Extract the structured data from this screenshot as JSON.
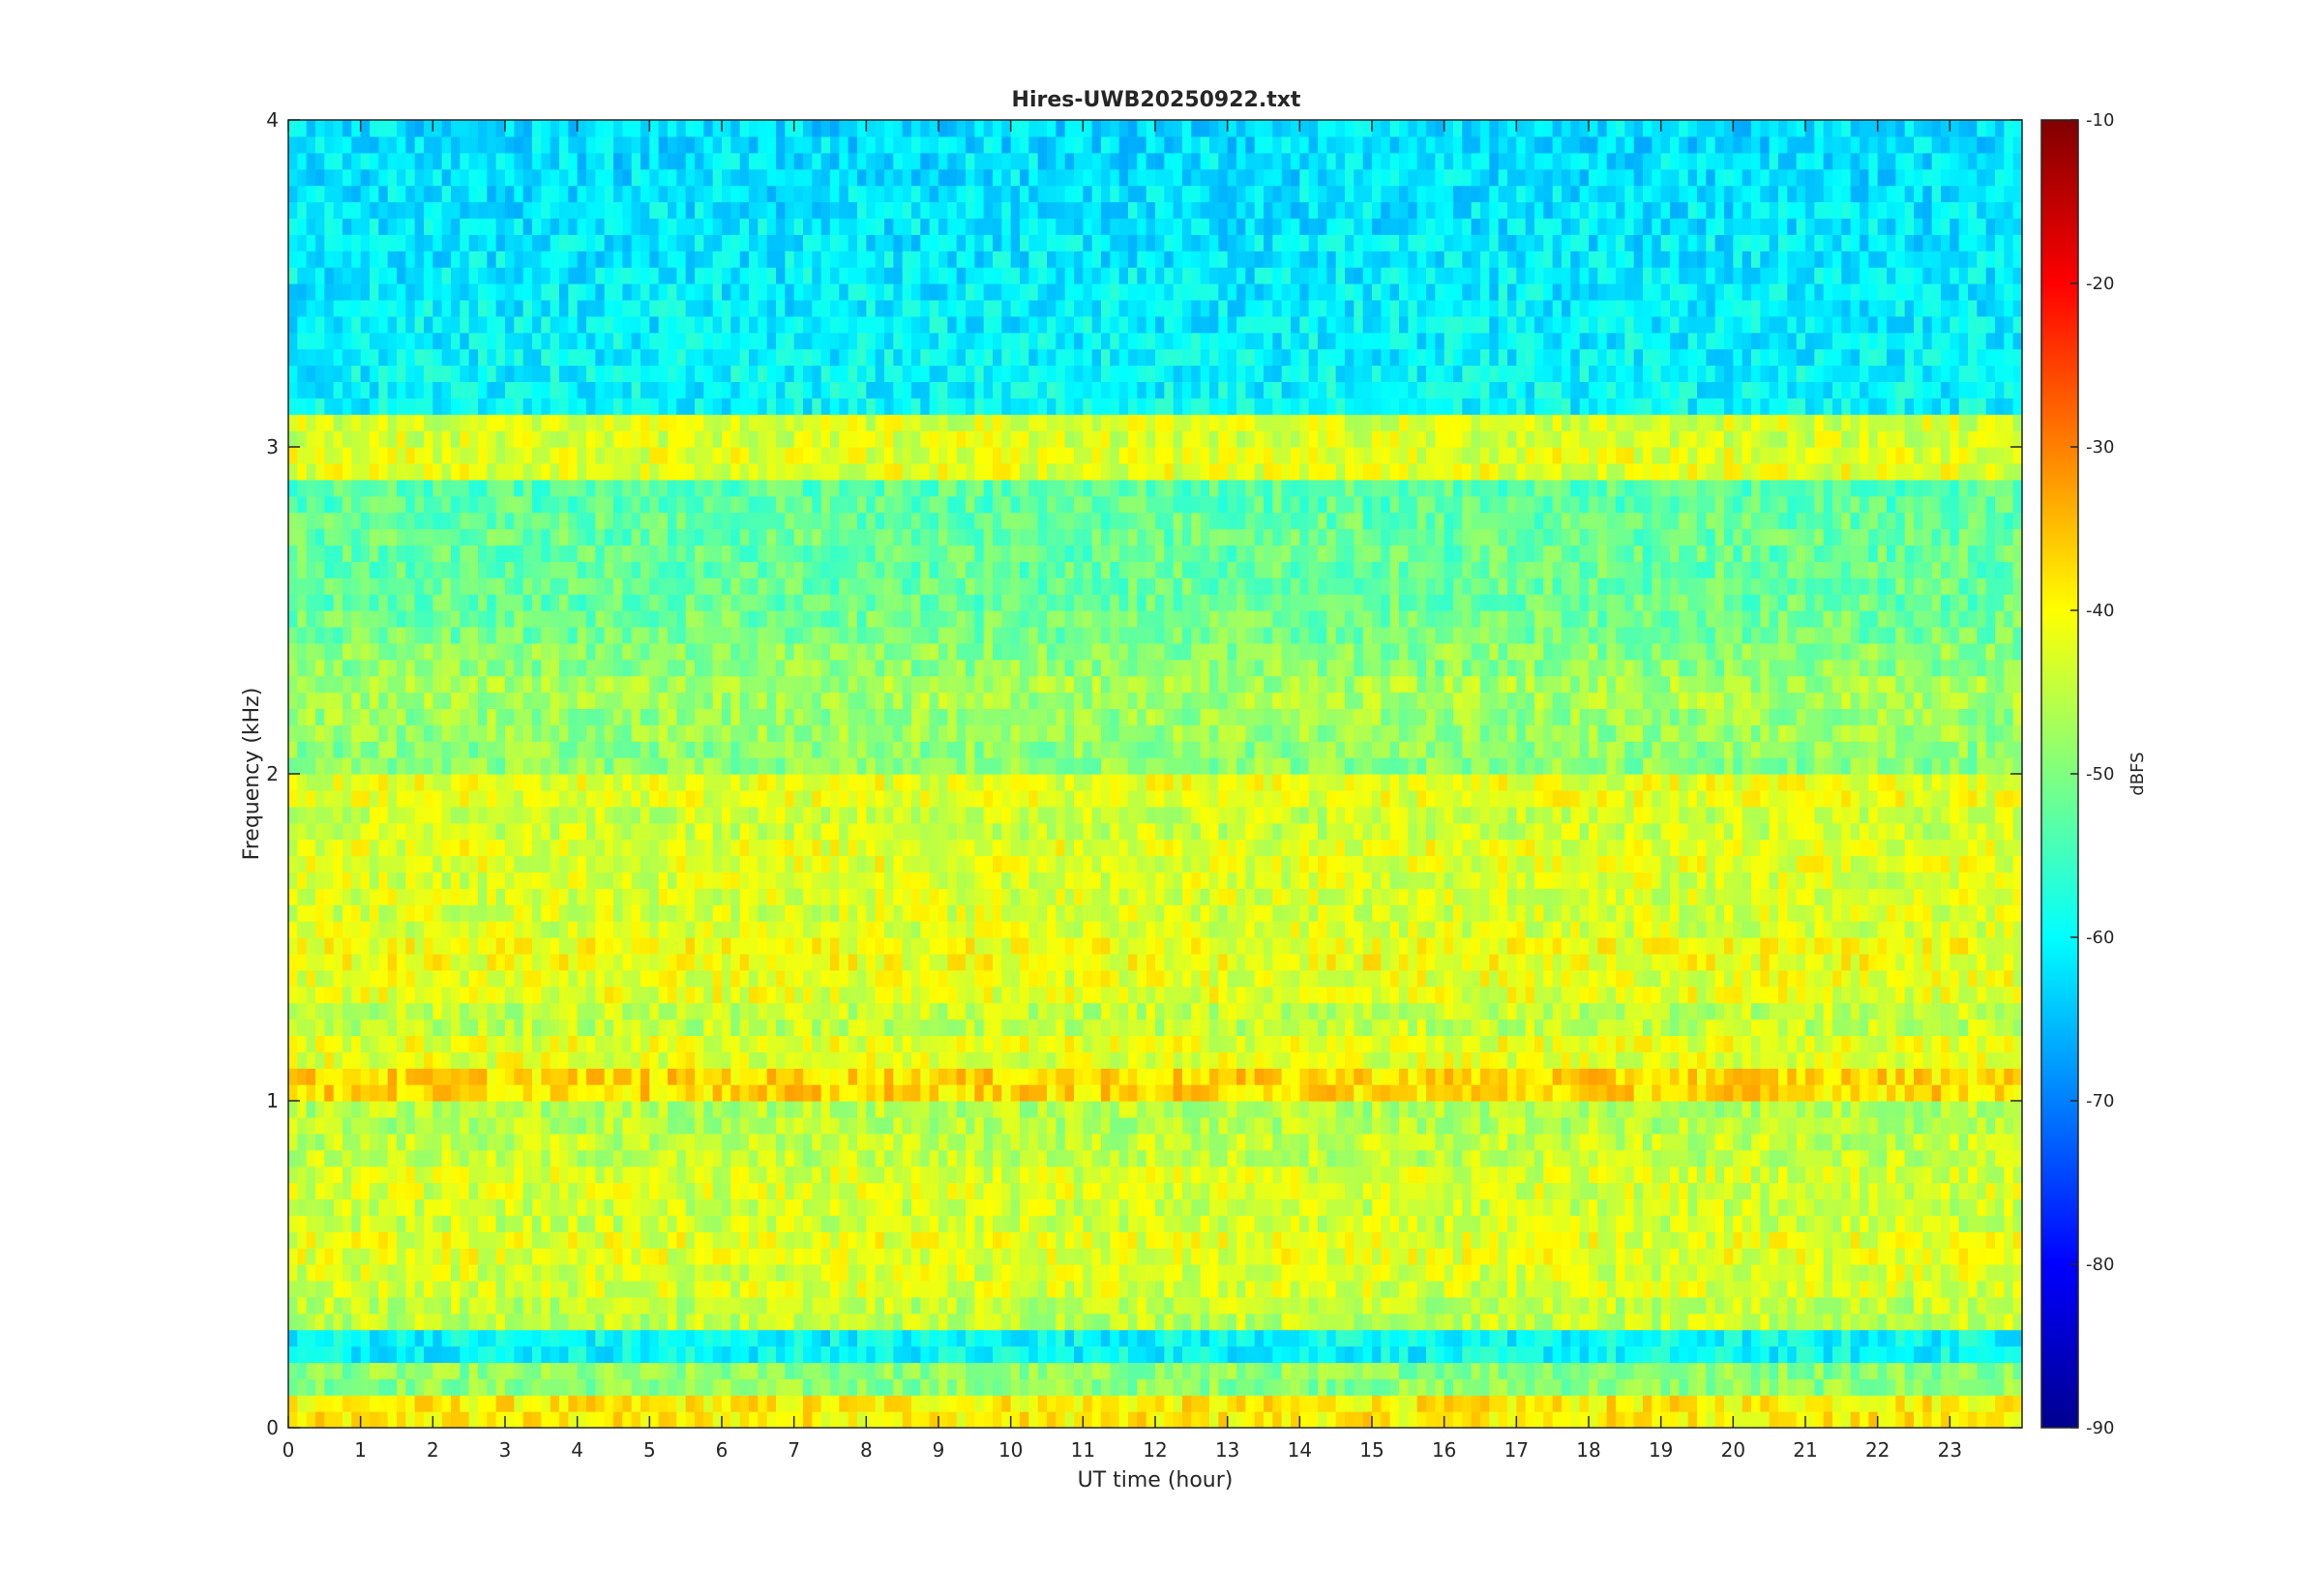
{
  "chart_data": {
    "type": "heatmap",
    "title": "Hires-UWB20250922.txt",
    "xlabel": "UT time (hour)",
    "ylabel": "Frequency (kHz)",
    "xlim": [
      0,
      24
    ],
    "ylim": [
      0,
      4
    ],
    "x_ticks": [
      "0",
      "1",
      "2",
      "3",
      "4",
      "5",
      "6",
      "7",
      "8",
      "9",
      "10",
      "11",
      "12",
      "13",
      "14",
      "15",
      "16",
      "17",
      "18",
      "19",
      "20",
      "21",
      "22",
      "23"
    ],
    "y_ticks": [
      "0",
      "1",
      "2",
      "3",
      "4"
    ],
    "colorbar": {
      "label": "dBFS",
      "clim": [
        -90,
        -10
      ],
      "ticks": [
        "-90",
        "-80",
        "-70",
        "-60",
        "-50",
        "-40",
        "-30",
        "-20",
        "-10"
      ],
      "colormap": "jet"
    },
    "grid": false,
    "bands_khz_dbfs": [
      {
        "f": 0.05,
        "level": -42
      },
      {
        "f": 0.15,
        "level": -52
      },
      {
        "f": 0.35,
        "level": -48
      },
      {
        "f": 0.45,
        "level": -46
      },
      {
        "f": 0.55,
        "level": -45
      },
      {
        "f": 0.65,
        "level": -47
      },
      {
        "f": 0.75,
        "level": -46
      },
      {
        "f": 0.85,
        "level": -48
      },
      {
        "f": 0.95,
        "level": -49
      },
      {
        "f": 1.05,
        "level": -40
      },
      {
        "f": 1.15,
        "level": -45
      },
      {
        "f": 1.25,
        "level": -48
      },
      {
        "f": 1.35,
        "level": -45
      },
      {
        "f": 1.45,
        "level": -44
      },
      {
        "f": 1.55,
        "level": -46
      },
      {
        "f": 1.65,
        "level": -46
      },
      {
        "f": 1.75,
        "level": -45
      },
      {
        "f": 1.85,
        "level": -47
      },
      {
        "f": 1.95,
        "level": -45
      },
      {
        "f": 2.05,
        "level": -52
      },
      {
        "f": 2.15,
        "level": -51
      },
      {
        "f": 2.25,
        "level": -50
      },
      {
        "f": 2.35,
        "level": -52
      },
      {
        "f": 2.45,
        "level": -54
      },
      {
        "f": 2.55,
        "level": -55
      },
      {
        "f": 2.65,
        "level": -55
      },
      {
        "f": 2.75,
        "level": -55
      },
      {
        "f": 2.85,
        "level": -56
      },
      {
        "f": 2.95,
        "level": -45
      },
      {
        "f": 3.05,
        "level": -46
      },
      {
        "f": 3.5,
        "level": -62
      },
      {
        "f": 3.9,
        "level": -63
      }
    ],
    "background_level_dbfs": -60
  },
  "colors": {
    "axis": "#262626",
    "background": "#ffffff"
  }
}
